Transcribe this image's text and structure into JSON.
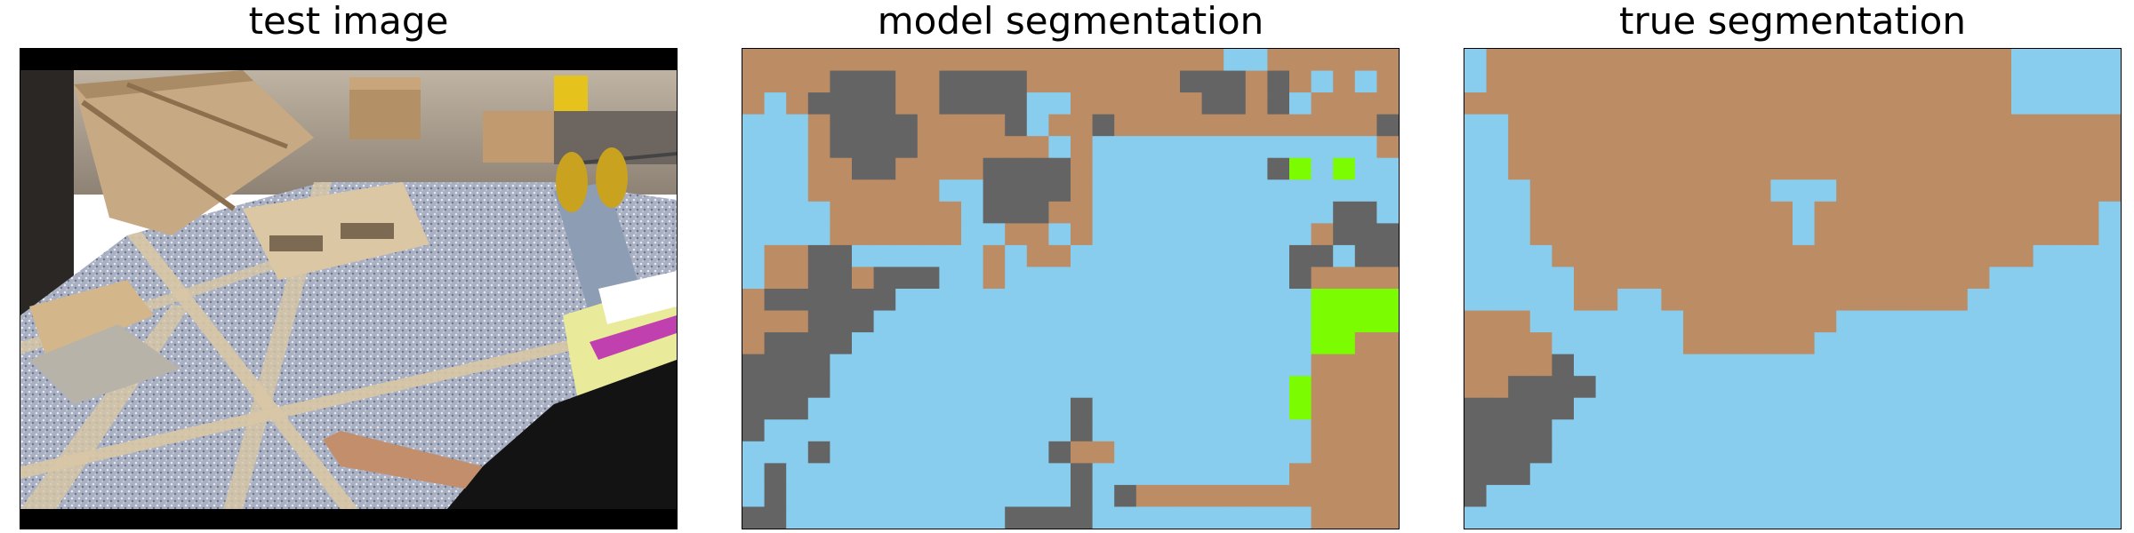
{
  "panels": {
    "test_image": {
      "title": "test image"
    },
    "model_segmentation": {
      "title": "model segmentation"
    },
    "true_segmentation": {
      "title": "true segmentation"
    }
  },
  "segmentation_grid": {
    "columns": 30,
    "rows": 22
  },
  "class_colors": {
    "floor": "#88cdee",
    "boxes": "#bc8c65",
    "gray": "#646464",
    "green": "#7cfc00"
  },
  "model_segmentation_mask": [
    "BBBBBBBBBBBBBBBBBBBBBBFFBBBBBB",
    "BBBBGGGBBGGGGBBBBBBBGGGBGBFBFB",
    "BFBGGGGBBGGGGFFBBBBBBGGBGFBBBB",
    "FFFBGGGGBBBBGFBBGBBBBBBBBBBBBG",
    "FFFBGGGGBBBBBBFBFFFFFFFFFFFFFB",
    "FFFBBGGBBBBGGGGBFFFFFFFFGFFFFF",
    "FFFBBBBBBFFGGGGBFFFFFFFFFFFFFF",
    "FFFFBBBBBBFGGGBBFFFFFFFFFFFGGF",
    "FFFFBBBBBBFFBBFBFFFFFFFFFFBGGG",
    "FBBGGFFFFFFBFBBFFFFFFFFFFGGFGG",
    "FBBGGBGGGFFBFFFFFFFFFFFFFGBBBB",
    "BGGGGGGFFFFFFFFFFFFFFFFFFFBBBB",
    "BBBGGGFFFFFFFFFFFFFFFFFFFFBBBB",
    "BGGGGFFFFFFFFFFFFFFFFFFFFFBBBB",
    "GGGGFFFFFFFFFFFFFFFFFFFFFFBBBB",
    "GGGGFFFFFFFFFFFFFFFFFFFFFFBBBB",
    "GGGFFFFFFFFFFFFGFFFFFFFFFFBBBB",
    "GFFFFFFFFFFFFFFGFFFFFFFFFFBBBB",
    "FFFGFFFFFFFFFFGBBFFFFFFFFFBBBB",
    "FGFFFFFFFFFFFFFGFFFFFFFFFBBBBB",
    "FGFFFFFFFFFFFFFGFGBBBBBBBBBBBB",
    "GGFFFFFFFFFFGGGGFFFFFFFFFFBBBB"
  ],
  "model_segmentation_green": [
    [
      25,
      5
    ],
    [
      27,
      5
    ],
    [
      26,
      11
    ],
    [
      27,
      11
    ],
    [
      28,
      11
    ],
    [
      29,
      11
    ],
    [
      26,
      12
    ],
    [
      27,
      12
    ],
    [
      28,
      12
    ],
    [
      29,
      12
    ],
    [
      26,
      13
    ],
    [
      27,
      13
    ],
    [
      25,
      15
    ],
    [
      25,
      16
    ]
  ],
  "true_segmentation_mask": [
    "FBBBBBBBBBBBBBBBBBBBBBBBBFFFFF",
    "FBBBBBBBBBBBBBBBBBBBBBBBBFFFFF",
    "BBBBBBBBBBBBBBBBBBBBBBBBBFFFFF",
    "FFBBBBBBBBBBBBBBBBBBBBBBBBBBBB",
    "FFBBBBBBBBBBBBBBBBBBBBBBBBBBBB",
    "FFBBBBBBBBBBBBBBBBBBBBBBBBBBBB",
    "FFFBBBBBBBBBBBFFFBBBBBBBBBBBBB",
    "FFFBBBBBBBBBBBBFBBBBBBBBBBBBBF",
    "FFFBBBBBBBBBBBBFBBBBBBBBBBBBBF",
    "FFFFBBBBBBBBBBBBBBBBBBBBBBFFFF",
    "FFFFFBBBBBBBBBBBBBBBBBBBFFFFFF",
    "FFFFFBBFFBBBBBBBBBBBBBBFFFFFFF",
    "BBBFFFFFFFBBBBBBBFFFFFFFFFFFFF",
    "BBBBFFFFFFBBBBBBFFFFFFFFFFFFFF",
    "BBBBGFFFFFFFFFFFFFFFFFFFFFFFFF",
    "BBGGGGFFFFFFFFFFFFFFFFFFFFFFFF",
    "GGGGGFFFFFFFFFFFFFFFFFFFFFFFFF",
    "GGGGFFFFFFFFFFFFFFFFFFFFFFFFFF",
    "GGGGFFFFFFFFFFFFFFFFFFFFFFFFFF",
    "GGGFFFFFFFFFFFFFFFFFFFFFFFFFFF",
    "GFFFFFFFFFFFFFFFFFFFFFFFFFFFFF",
    "FFFFFFFFFFFFFFFFFFFFFFFFFFFFFF"
  ]
}
